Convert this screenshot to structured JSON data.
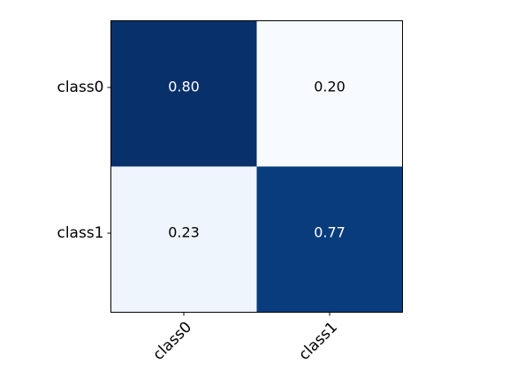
{
  "chart_data": {
    "type": "heatmap",
    "title": "",
    "xlabel": "",
    "ylabel": "",
    "x_labels": [
      "class0",
      "class1"
    ],
    "y_labels": [
      "class0",
      "class1"
    ],
    "values": [
      [
        0.8,
        0.2
      ],
      [
        0.23,
        0.77
      ]
    ],
    "cell_labels": [
      [
        "0.80",
        "0.20"
      ],
      [
        "0.23",
        "0.77"
      ]
    ],
    "colormap": "Blues",
    "cell_colors": [
      [
        "#08306b",
        "#f7fbff"
      ],
      [
        "#eef5fc",
        "#083c7d"
      ]
    ],
    "text_colors": [
      [
        "#ffffff",
        "#000000"
      ],
      [
        "#000000",
        "#ffffff"
      ]
    ],
    "x_tick_rotation_deg": 45,
    "grid": false,
    "legend": "none"
  }
}
